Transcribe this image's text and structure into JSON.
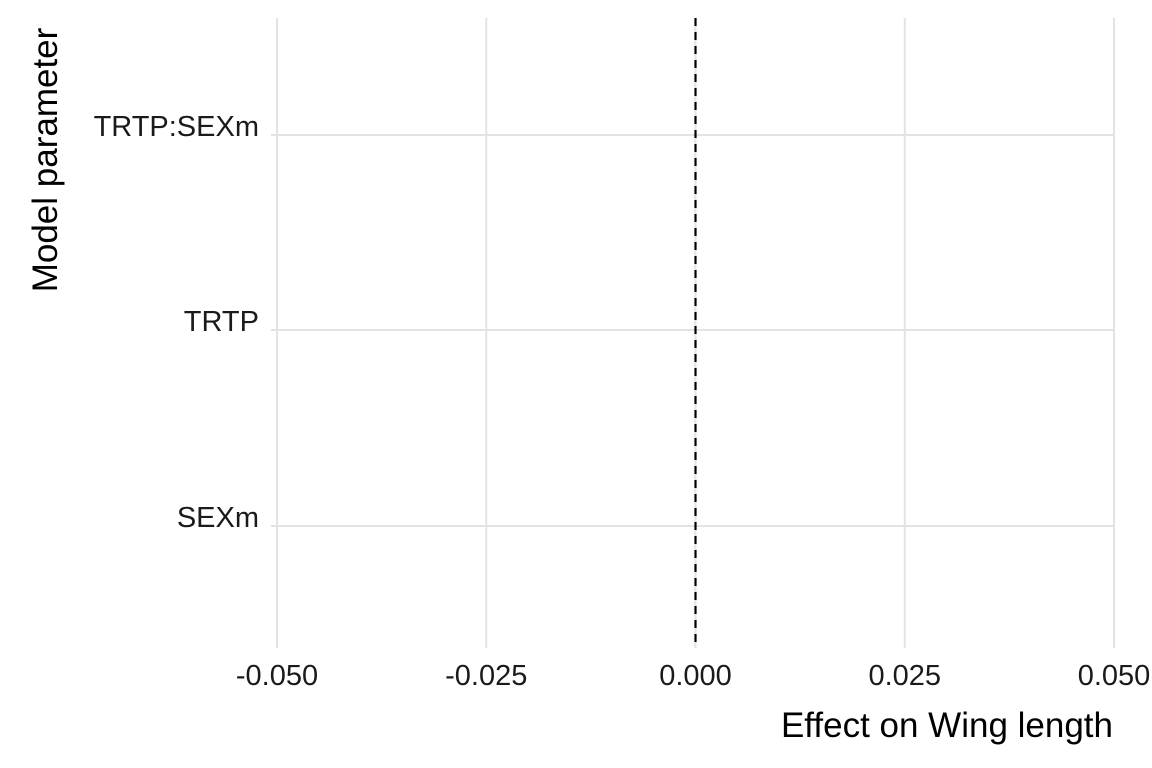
{
  "chart_data": {
    "type": "scatter",
    "title": "",
    "xlabel": "Effect on Wing length",
    "ylabel": "Model parameter",
    "xlim": [
      -0.05,
      0.05
    ],
    "x_ticks": [
      -0.05,
      -0.025,
      0.0,
      0.025,
      0.05
    ],
    "x_tick_labels": [
      "-0.050",
      "-0.025",
      "0.000",
      "0.025",
      "0.050"
    ],
    "categories": [
      "TRTP:SEXm",
      "TRTP",
      "SEXm"
    ],
    "reference_line": {
      "x": 0,
      "style": "dashed",
      "color": "#000000"
    },
    "grid": true,
    "legend": "none",
    "series": []
  },
  "colors": {
    "grid": "#e3e3e3",
    "text": "#1a1a1a",
    "reference": "#000000",
    "background": "#ffffff"
  }
}
